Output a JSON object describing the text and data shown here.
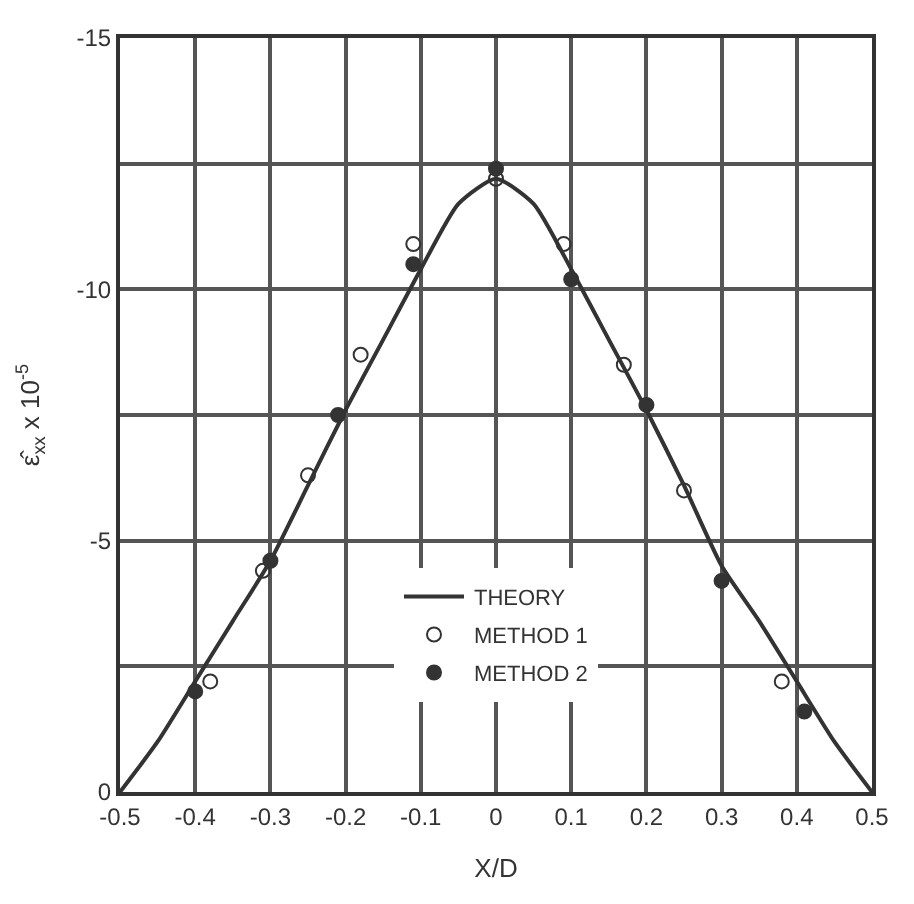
{
  "chart_data": {
    "type": "scatter",
    "xlabel": "X/D",
    "ylabel": "ε̂$_{xx}$ x 10$^{-5}$",
    "xlim": [
      -0.5,
      0.5
    ],
    "xticks": [
      -0.5,
      -0.4,
      -0.3,
      -0.2,
      -0.1,
      0,
      0.1,
      0.2,
      0.3,
      0.4,
      0.5
    ],
    "ylim": [
      0,
      -15
    ],
    "yticks": [
      -15,
      {
        "value": -12.5,
        "label": null
      },
      -10,
      {
        "value": -7.5,
        "label": null
      },
      -5,
      {
        "value": -2.5,
        "label": null
      },
      0
    ],
    "grid": true,
    "legend": "bottom",
    "series": [
      {
        "name": "THEORY",
        "type": "line",
        "color": "#333333",
        "marker": "none",
        "line_style": "solid",
        "x": [
          -0.5,
          -0.45,
          -0.4,
          -0.35,
          -0.3,
          -0.25,
          -0.2,
          -0.15,
          -0.1,
          -0.05,
          0,
          0.05,
          0.1,
          0.15,
          0.2,
          0.25,
          0.3,
          0.35,
          0.4,
          0.45,
          0.5
        ],
        "values": [
          0,
          -1.0,
          -2.2,
          -3.4,
          -4.6,
          -6.1,
          -7.6,
          -9.0,
          -10.4,
          -11.7,
          -12.2,
          -11.7,
          -10.4,
          -9.0,
          -7.6,
          -6.1,
          -4.5,
          -3.4,
          -2.2,
          -1.0,
          0
        ]
      },
      {
        "name": "METHOD 1",
        "color": "#333333",
        "marker": "circle-open",
        "x": [
          -0.38,
          -0.31,
          -0.25,
          -0.18,
          -0.11,
          0,
          0.09,
          0.17,
          0.25,
          0.38
        ],
        "values": [
          -2.2,
          -4.4,
          -6.3,
          -8.7,
          -10.9,
          -12.2,
          -10.9,
          -8.5,
          -6.0,
          -2.2
        ]
      },
      {
        "name": "METHOD 2",
        "color": "#333333",
        "marker": "circle",
        "x": [
          -0.4,
          -0.3,
          -0.21,
          -0.11,
          0,
          0.1,
          0.2,
          0.3,
          0.41
        ],
        "values": [
          -2.0,
          -4.6,
          -7.5,
          -10.5,
          -12.4,
          -10.2,
          -7.7,
          -4.2,
          -1.6
        ]
      }
    ]
  }
}
